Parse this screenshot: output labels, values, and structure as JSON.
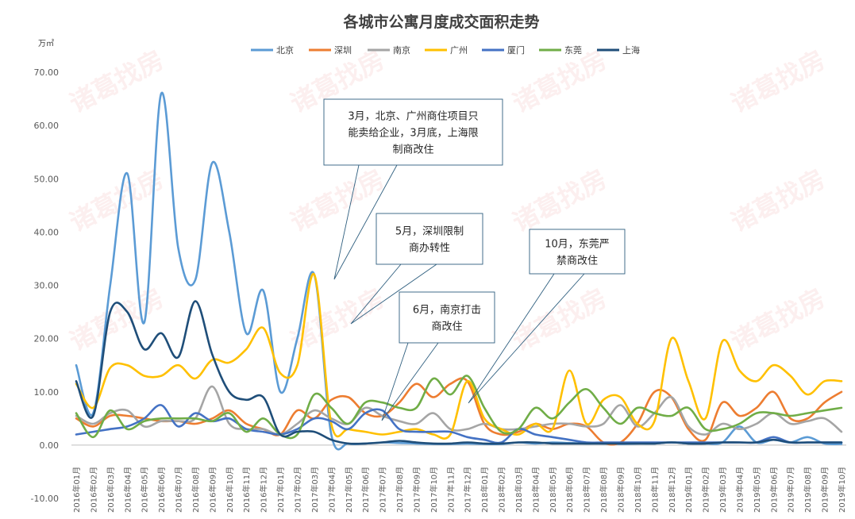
{
  "watermark_text": "诸葛找房",
  "chart_data": {
    "type": "line",
    "title": "各城市公寓月度成交面积走势",
    "unit": "万㎡",
    "ylim": [
      -10,
      70
    ],
    "yticks": [
      "70.00",
      "60.00",
      "50.00",
      "40.00",
      "30.00",
      "20.00",
      "10.00",
      "0.00",
      "-10.00"
    ],
    "ytick_values": [
      70,
      60,
      50,
      40,
      30,
      20,
      10,
      0,
      -10
    ],
    "legend_position": "top",
    "categories": [
      "2016年01月",
      "2016年02月",
      "2016年03月",
      "2016年04月",
      "2016年05月",
      "2016年06月",
      "2016年07月",
      "2016年08月",
      "2016年09月",
      "2016年10月",
      "2016年11月",
      "2016年12月",
      "2017年01月",
      "2017年02月",
      "2017年03月",
      "2017年04月",
      "2017年05月",
      "2017年06月",
      "2017年07月",
      "2017年08月",
      "2017年09月",
      "2017年10月",
      "2017年11月",
      "2017年12月",
      "2018年01月",
      "2018年02月",
      "2018年03月",
      "2018年04月",
      "2018年05月",
      "2018年06月",
      "2018年07月",
      "2018年08月",
      "2018年09月",
      "2018年10月",
      "2018年11月",
      "2018年12月",
      "2019年01月",
      "2019年02月",
      "2019年03月",
      "2019年04月",
      "2019年05月",
      "2019年06月",
      "2019年07月",
      "2019年08月",
      "2019年09月",
      "2019年10月"
    ],
    "series": [
      {
        "name": "北京",
        "color": "#5B9BD5",
        "values": [
          15,
          6,
          30,
          51,
          23,
          66,
          37,
          31,
          53,
          40,
          21,
          29,
          10,
          20,
          32,
          2,
          0.3,
          0.3,
          0.5,
          0.4,
          0.3,
          0.2,
          0.2,
          0.3,
          0.2,
          0.2,
          0.5,
          0.3,
          0.5,
          0.4,
          0.3,
          0.3,
          0.2,
          0.3,
          0.3,
          0.5,
          0.3,
          0.3,
          0.5,
          3.5,
          0.5,
          1,
          0.5,
          1.5,
          0.3,
          0.2
        ]
      },
      {
        "name": "深圳",
        "color": "#ED7D31",
        "values": [
          5,
          3.5,
          5.5,
          5.5,
          5,
          4.5,
          4.5,
          4,
          5,
          6.5,
          4,
          3,
          2,
          6.5,
          5,
          8.5,
          9,
          6,
          5.5,
          8,
          11.5,
          9,
          11.5,
          12,
          4,
          2,
          2.5,
          4,
          3,
          4,
          3.5,
          0.5,
          0.5,
          4,
          10,
          9,
          3,
          1,
          8,
          5.5,
          7,
          10,
          5,
          5,
          8,
          10
        ]
      },
      {
        "name": "南京",
        "color": "#A5A5A5",
        "values": [
          5.5,
          4,
          6,
          6.5,
          3.5,
          4.5,
          4.5,
          5,
          11,
          4,
          3,
          3,
          2,
          4,
          6.5,
          5,
          4,
          7,
          5.5,
          4.5,
          4,
          6,
          3,
          3,
          4,
          3,
          3,
          3.5,
          4,
          4,
          3.5,
          4,
          7.5,
          3.5,
          6,
          9,
          3.5,
          2,
          4,
          3,
          4,
          6,
          4,
          4.5,
          5,
          2.5
        ]
      },
      {
        "name": "广州",
        "color": "#FFC000",
        "values": [
          11.5,
          7,
          14.5,
          15,
          13,
          13,
          15,
          12.5,
          16,
          15.5,
          18,
          22,
          13.5,
          15,
          32,
          4,
          3,
          2.5,
          2,
          2.5,
          3,
          2,
          2,
          12,
          5,
          3,
          2,
          4,
          3,
          14,
          4,
          8.5,
          9,
          4,
          4.5,
          20,
          12,
          5,
          19.5,
          14,
          12,
          15,
          13,
          9.5,
          12,
          12
        ]
      },
      {
        "name": "厦门",
        "color": "#4472C4",
        "values": [
          2,
          2.5,
          3,
          3.5,
          5,
          7.5,
          3.5,
          6,
          4.5,
          5,
          3,
          2.5,
          2,
          3,
          5,
          4.5,
          3,
          6,
          6.5,
          3,
          2.5,
          2.5,
          2.5,
          1.5,
          1,
          0.5,
          3,
          2,
          1.5,
          1,
          0.5,
          0.5,
          0.5,
          0.5,
          0.5,
          0.5,
          0.5,
          0.5,
          0.5,
          0.5,
          0.5,
          1.5,
          0.5,
          0.5,
          0.5,
          0.5
        ]
      },
      {
        "name": "东莞",
        "color": "#70AD47",
        "values": [
          6,
          1.5,
          6.5,
          3,
          4.5,
          5,
          5,
          5,
          4.5,
          6,
          2.5,
          5,
          2,
          2,
          9.5,
          7,
          4,
          8,
          8,
          7,
          7,
          12.5,
          9.5,
          13,
          7,
          2.5,
          3,
          7,
          5,
          8,
          10.5,
          7,
          4,
          7,
          6,
          5.5,
          7,
          3,
          3,
          4,
          6,
          6,
          5.5,
          6,
          6.5,
          7
        ]
      },
      {
        "name": "上海",
        "color": "#1F4E79",
        "values": [
          12,
          5.5,
          25,
          25,
          18,
          21,
          16.5,
          27,
          17,
          10,
          8.5,
          9,
          2,
          2.5,
          2.5,
          1,
          0.3,
          0.3,
          0.5,
          0.8,
          0.5,
          0.3,
          0.3,
          0.5,
          0.3,
          0.3,
          0.5,
          0.5,
          0.3,
          0.3,
          0.3,
          0.3,
          0.3,
          0.3,
          0.3,
          0.5,
          0.3,
          0.3,
          0.5,
          0.5,
          0.5,
          1,
          0.5,
          0.5,
          0.5,
          0.5
        ]
      }
    ],
    "annotations": [
      {
        "text": "3月，北京、广州商住项目只能卖给企业，3月底，上海限制商改住",
        "lines": [
          "3月，北京、广州商住项目只",
          "能卖给企业，3月底，上海限",
          "制商改住"
        ]
      },
      {
        "text": "5月，深圳限制商办转性",
        "lines": [
          "5月，深圳限制",
          "商办转性"
        ]
      },
      {
        "text": "6月，南京打击商改住",
        "lines": [
          "6月，南京打击",
          "商改住"
        ]
      },
      {
        "text": "10月，东莞严禁商改住",
        "lines": [
          "10月，东莞严",
          "禁商改住"
        ]
      }
    ]
  }
}
